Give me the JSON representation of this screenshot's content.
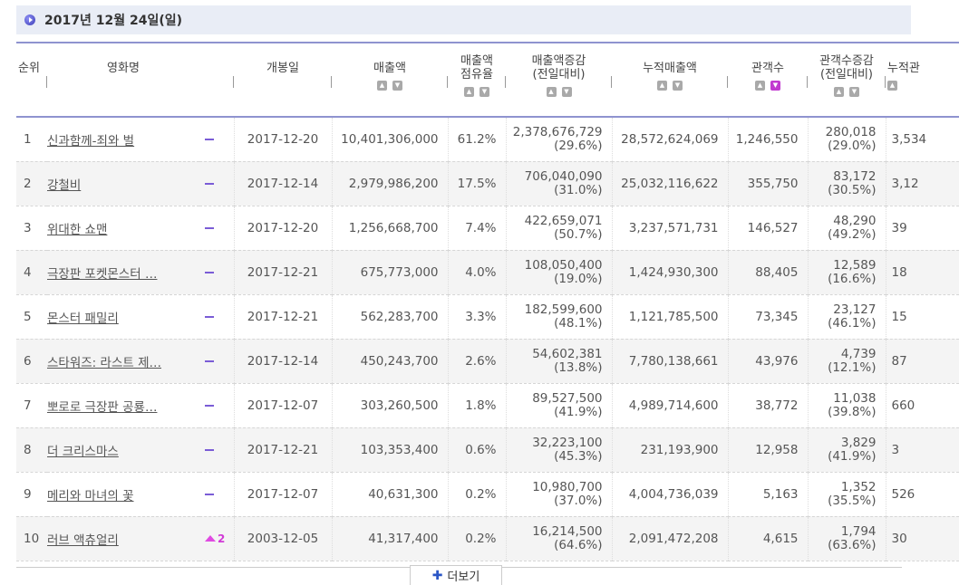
{
  "date_header": "2017년 12월 24일(일)",
  "columns": {
    "rank": "순위",
    "title": "영화명",
    "release": "개봉일",
    "sales": "매출액",
    "share_1": "매출액",
    "share_2": "점유율",
    "sales_delta_1": "매출액증감",
    "sales_delta_2": "(전일대비)",
    "cum_sales": "누적매출액",
    "audience": "관객수",
    "aud_delta_1": "관객수증감",
    "aud_delta_2": "(전일대비)",
    "cum_aud": "누적관"
  },
  "rows": [
    {
      "rank": "1",
      "title": "신과함께-죄와 벌",
      "change": "dash",
      "release": "2017-12-20",
      "sales": "10,401,306,000",
      "share": "61.2%",
      "sales_delta": "2,378,676,729",
      "sales_delta_pct": "(29.6%)",
      "cum_sales": "28,572,624,069",
      "audience": "1,246,550",
      "aud_delta": "280,018",
      "aud_delta_pct": "(29.0%)",
      "cum_aud": "3,534"
    },
    {
      "rank": "2",
      "title": "강철비",
      "change": "dash",
      "release": "2017-12-14",
      "sales": "2,979,986,200",
      "share": "17.5%",
      "sales_delta": "706,040,090",
      "sales_delta_pct": "(31.0%)",
      "cum_sales": "25,032,116,622",
      "audience": "355,750",
      "aud_delta": "83,172",
      "aud_delta_pct": "(30.5%)",
      "cum_aud": "3,12"
    },
    {
      "rank": "3",
      "title": "위대한 쇼맨",
      "change": "dash",
      "release": "2017-12-20",
      "sales": "1,256,668,700",
      "share": "7.4%",
      "sales_delta": "422,659,071",
      "sales_delta_pct": "(50.7%)",
      "cum_sales": "3,237,571,731",
      "audience": "146,527",
      "aud_delta": "48,290",
      "aud_delta_pct": "(49.2%)",
      "cum_aud": "39"
    },
    {
      "rank": "4",
      "title": "극장판 포켓몬스터 …",
      "change": "dash",
      "release": "2017-12-21",
      "sales": "675,773,000",
      "share": "4.0%",
      "sales_delta": "108,050,400",
      "sales_delta_pct": "(19.0%)",
      "cum_sales": "1,424,930,300",
      "audience": "88,405",
      "aud_delta": "12,589",
      "aud_delta_pct": "(16.6%)",
      "cum_aud": "18"
    },
    {
      "rank": "5",
      "title": "몬스터 패밀리",
      "change": "dash",
      "release": "2017-12-21",
      "sales": "562,283,700",
      "share": "3.3%",
      "sales_delta": "182,599,600",
      "sales_delta_pct": "(48.1%)",
      "cum_sales": "1,121,785,500",
      "audience": "73,345",
      "aud_delta": "23,127",
      "aud_delta_pct": "(46.1%)",
      "cum_aud": "15"
    },
    {
      "rank": "6",
      "title": "스타워즈: 라스트 제…",
      "change": "dash",
      "release": "2017-12-14",
      "sales": "450,243,700",
      "share": "2.6%",
      "sales_delta": "54,602,381",
      "sales_delta_pct": "(13.8%)",
      "cum_sales": "7,780,138,661",
      "audience": "43,976",
      "aud_delta": "4,739",
      "aud_delta_pct": "(12.1%)",
      "cum_aud": "87"
    },
    {
      "rank": "7",
      "title": "뽀로로 극장판 공룡…",
      "change": "dash",
      "release": "2017-12-07",
      "sales": "303,260,500",
      "share": "1.8%",
      "sales_delta": "89,527,500",
      "sales_delta_pct": "(41.9%)",
      "cum_sales": "4,989,714,600",
      "audience": "38,772",
      "aud_delta": "11,038",
      "aud_delta_pct": "(39.8%)",
      "cum_aud": "660"
    },
    {
      "rank": "8",
      "title": "더 크리스마스",
      "change": "dash",
      "release": "2017-12-21",
      "sales": "103,353,400",
      "share": "0.6%",
      "sales_delta": "32,223,100",
      "sales_delta_pct": "(45.3%)",
      "cum_sales": "231,193,900",
      "audience": "12,958",
      "aud_delta": "3,829",
      "aud_delta_pct": "(41.9%)",
      "cum_aud": "3"
    },
    {
      "rank": "9",
      "title": "메리와 마녀의 꽃",
      "change": "dash",
      "release": "2017-12-07",
      "sales": "40,631,300",
      "share": "0.2%",
      "sales_delta": "10,980,700",
      "sales_delta_pct": "(37.0%)",
      "cum_sales": "4,004,736,039",
      "audience": "5,163",
      "aud_delta": "1,352",
      "aud_delta_pct": "(35.5%)",
      "cum_aud": "526"
    },
    {
      "rank": "10",
      "title": "러브 액츄얼리",
      "change": "up",
      "change_value": "2",
      "release": "2003-12-05",
      "sales": "41,317,400",
      "share": "0.2%",
      "sales_delta": "16,214,500",
      "sales_delta_pct": "(64.6%)",
      "cum_sales": "2,091,472,208",
      "audience": "4,615",
      "aud_delta": "1,794",
      "aud_delta_pct": "(63.6%)",
      "cum_aud": "30"
    }
  ],
  "more_button": "더보기",
  "colors": {
    "accent": "#8f93cf",
    "header_bg": "#e9edf6",
    "sort_active": "#c13ad0",
    "up": "#e04ae2",
    "dash": "#7a5cd6"
  }
}
